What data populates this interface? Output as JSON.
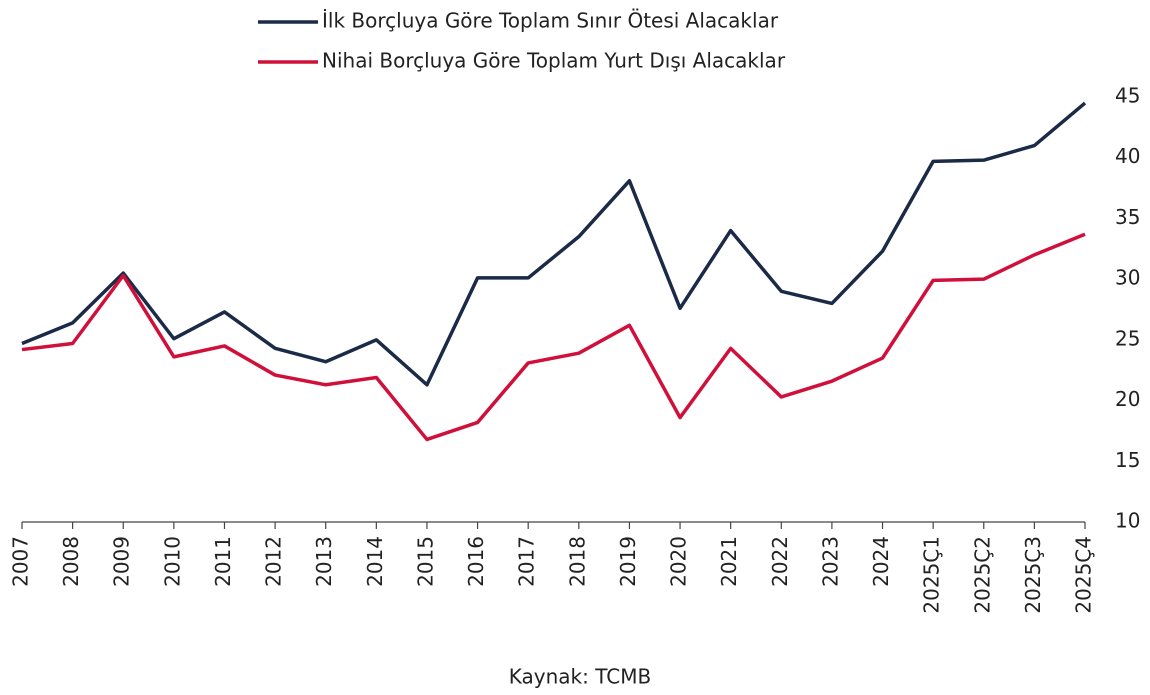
{
  "chart_data": {
    "type": "line",
    "categories": [
      "2007",
      "2008",
      "2009",
      "2010",
      "2011",
      "2012",
      "2013",
      "2014",
      "2015",
      "2016",
      "2017",
      "2018",
      "2019",
      "2020",
      "2021",
      "2022",
      "2023",
      "2024",
      "2025Ç1",
      "2025Ç2",
      "2025Ç3",
      "2025Ç4"
    ],
    "series": [
      {
        "name": "İlk Borçluya Göre Toplam Sınır Ötesi Alacaklar",
        "color": "#1a2a47",
        "values": [
          24.7,
          26.4,
          30.5,
          25.1,
          27.3,
          24.3,
          23.2,
          25.0,
          21.3,
          30.1,
          30.1,
          33.5,
          38.1,
          27.6,
          34.0,
          29.0,
          28.0,
          32.3,
          39.7,
          39.8,
          41.0,
          44.5
        ]
      },
      {
        "name": "Nihai Borçluya Göre Toplam Yurt Dışı Alacaklar",
        "color": "#d0103a",
        "values": [
          24.2,
          24.7,
          30.3,
          23.6,
          24.5,
          22.1,
          21.3,
          21.9,
          16.8,
          18.2,
          23.1,
          23.9,
          26.2,
          18.6,
          24.3,
          20.3,
          21.6,
          23.5,
          29.9,
          30.0,
          32.0,
          33.7
        ]
      }
    ],
    "ylim": [
      10,
      45
    ],
    "yticks": [
      10,
      15,
      20,
      25,
      30,
      35,
      40,
      45
    ],
    "y_axis_side": "right",
    "legend": "top",
    "grid": false,
    "source": "Kaynak: TCMB"
  }
}
